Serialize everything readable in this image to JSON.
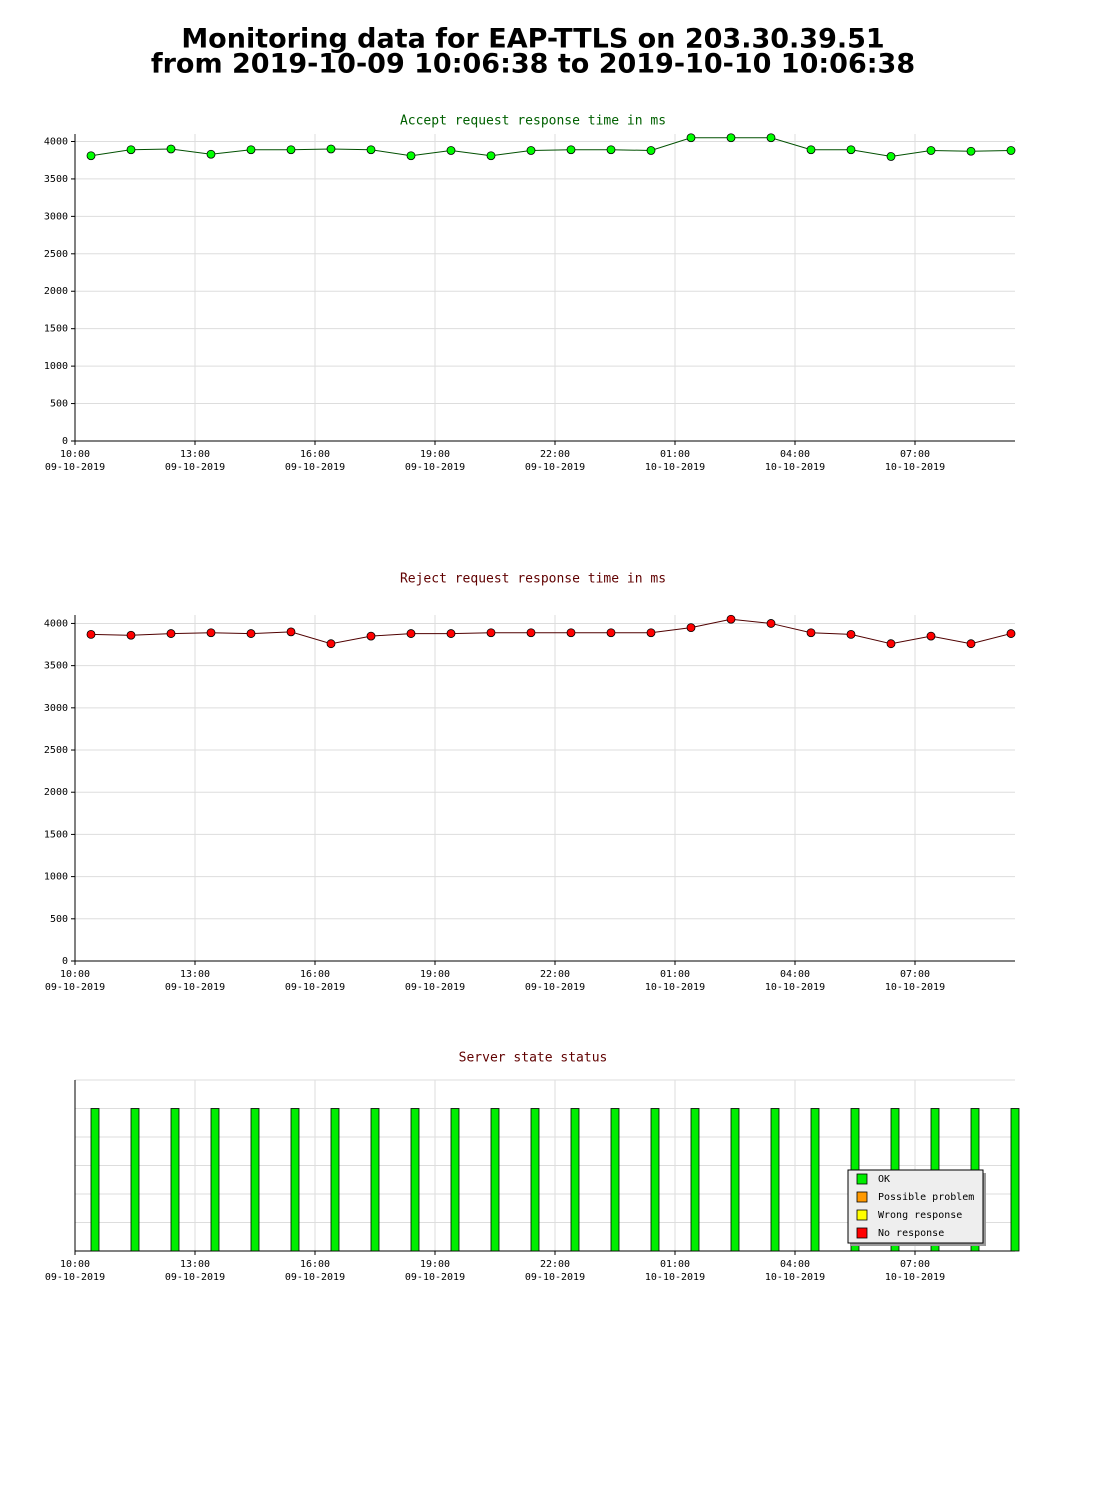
{
  "page_title": [
    "Monitoring data for EAP-TTLS on 203.30.39.51",
    "from 2019-10-09 10:06:38 to 2019-10-10 10:06:38"
  ],
  "chart_data": [
    {
      "type": "line",
      "title": "Accept request response time in ms",
      "title_color": "#006000",
      "x": [
        10.4,
        11.4,
        12.4,
        13.4,
        14.4,
        15.4,
        16.4,
        17.4,
        18.4,
        19.4,
        20.4,
        21.4,
        22.4,
        23.4,
        24.4,
        25.4,
        26.4,
        27.4,
        28.4,
        29.4,
        30.4,
        31.4,
        32.4,
        33.4
      ],
      "series": [
        {
          "color": "#00ff00",
          "line_color": "#005000",
          "values": [
            3810,
            3890,
            3900,
            3830,
            3890,
            3890,
            3900,
            3890,
            3810,
            3880,
            3810,
            3880,
            3890,
            3890,
            3880,
            4050,
            4050,
            4050,
            3890,
            3890,
            3800,
            3880,
            3870,
            3880
          ]
        }
      ],
      "xlim": [
        10,
        33.5
      ],
      "xticks": [
        {
          "value": 10,
          "label": [
            "10:00",
            "09-10-2019"
          ]
        },
        {
          "value": 13,
          "label": [
            "13:00",
            "09-10-2019"
          ]
        },
        {
          "value": 16,
          "label": [
            "16:00",
            "09-10-2019"
          ]
        },
        {
          "value": 19,
          "label": [
            "19:00",
            "09-10-2019"
          ]
        },
        {
          "value": 22,
          "label": [
            "22:00",
            "09-10-2019"
          ]
        },
        {
          "value": 25,
          "label": [
            "01:00",
            "10-10-2019"
          ]
        },
        {
          "value": 28,
          "label": [
            "04:00",
            "10-10-2019"
          ]
        },
        {
          "value": 31,
          "label": [
            "07:00",
            "10-10-2019"
          ]
        }
      ],
      "ylim": [
        0,
        4100
      ],
      "yticks": [
        0,
        500,
        1000,
        1500,
        2000,
        2500,
        3000,
        3500,
        4000
      ],
      "grid": true
    },
    {
      "type": "line",
      "title": "Reject request response time in ms",
      "title_color": "#600000",
      "x": [
        10.4,
        11.4,
        12.4,
        13.4,
        14.4,
        15.4,
        16.4,
        17.4,
        18.4,
        19.4,
        20.4,
        21.4,
        22.4,
        23.4,
        24.4,
        25.4,
        26.4,
        27.4,
        28.4,
        29.4,
        30.4,
        31.4,
        32.4,
        33.4
      ],
      "series": [
        {
          "color": "#ff0000",
          "line_color": "#500000",
          "values": [
            3870,
            3860,
            3880,
            3890,
            3880,
            3900,
            3760,
            3850,
            3880,
            3880,
            3890,
            3890,
            3890,
            3890,
            3890,
            3950,
            4050,
            4000,
            3890,
            3870,
            3760,
            3850,
            3760,
            3880
          ]
        }
      ],
      "xlim": [
        10,
        33.5
      ],
      "xticks": [
        {
          "value": 10,
          "label": [
            "10:00",
            "09-10-2019"
          ]
        },
        {
          "value": 13,
          "label": [
            "13:00",
            "09-10-2019"
          ]
        },
        {
          "value": 16,
          "label": [
            "16:00",
            "09-10-2019"
          ]
        },
        {
          "value": 19,
          "label": [
            "19:00",
            "09-10-2019"
          ]
        },
        {
          "value": 22,
          "label": [
            "22:00",
            "09-10-2019"
          ]
        },
        {
          "value": 25,
          "label": [
            "01:00",
            "10-10-2019"
          ]
        },
        {
          "value": 28,
          "label": [
            "04:00",
            "10-10-2019"
          ]
        },
        {
          "value": 31,
          "label": [
            "07:00",
            "10-10-2019"
          ]
        }
      ],
      "ylim": [
        0,
        4100
      ],
      "yticks": [
        0,
        500,
        1000,
        1500,
        2000,
        2500,
        3000,
        3500,
        4000
      ],
      "grid": true
    },
    {
      "type": "bar",
      "title": "Server state status",
      "title_color": "#600000",
      "x": [
        10.5,
        11.5,
        12.5,
        13.5,
        14.5,
        15.5,
        16.5,
        17.5,
        18.5,
        19.5,
        20.5,
        21.5,
        22.5,
        23.5,
        24.5,
        25.5,
        26.5,
        27.5,
        28.5,
        29.5,
        30.5,
        31.5,
        32.5,
        33.5
      ],
      "states": [
        "OK",
        "OK",
        "OK",
        "OK",
        "OK",
        "OK",
        "OK",
        "OK",
        "OK",
        "OK",
        "OK",
        "OK",
        "OK",
        "OK",
        "OK",
        "OK",
        "OK",
        "OK",
        "OK",
        "OK",
        "OK",
        "OK",
        "OK",
        "OK"
      ],
      "legend": [
        {
          "name": "OK",
          "color": "#00ee00"
        },
        {
          "name": "Possible problem",
          "color": "#ff9900"
        },
        {
          "name": "Wrong response",
          "color": "#ffff00"
        },
        {
          "name": "No response",
          "color": "#ff0000"
        }
      ],
      "xlim": [
        10,
        33.5
      ],
      "xticks": [
        {
          "value": 10,
          "label": [
            "10:00",
            "09-10-2019"
          ]
        },
        {
          "value": 13,
          "label": [
            "13:00",
            "09-10-2019"
          ]
        },
        {
          "value": 16,
          "label": [
            "16:00",
            "09-10-2019"
          ]
        },
        {
          "value": 19,
          "label": [
            "19:00",
            "09-10-2019"
          ]
        },
        {
          "value": 22,
          "label": [
            "22:00",
            "09-10-2019"
          ]
        },
        {
          "value": 25,
          "label": [
            "01:00",
            "10-10-2019"
          ]
        },
        {
          "value": 28,
          "label": [
            "04:00",
            "10-10-2019"
          ]
        },
        {
          "value": 31,
          "label": [
            "07:00",
            "10-10-2019"
          ]
        }
      ],
      "grid": true
    }
  ]
}
